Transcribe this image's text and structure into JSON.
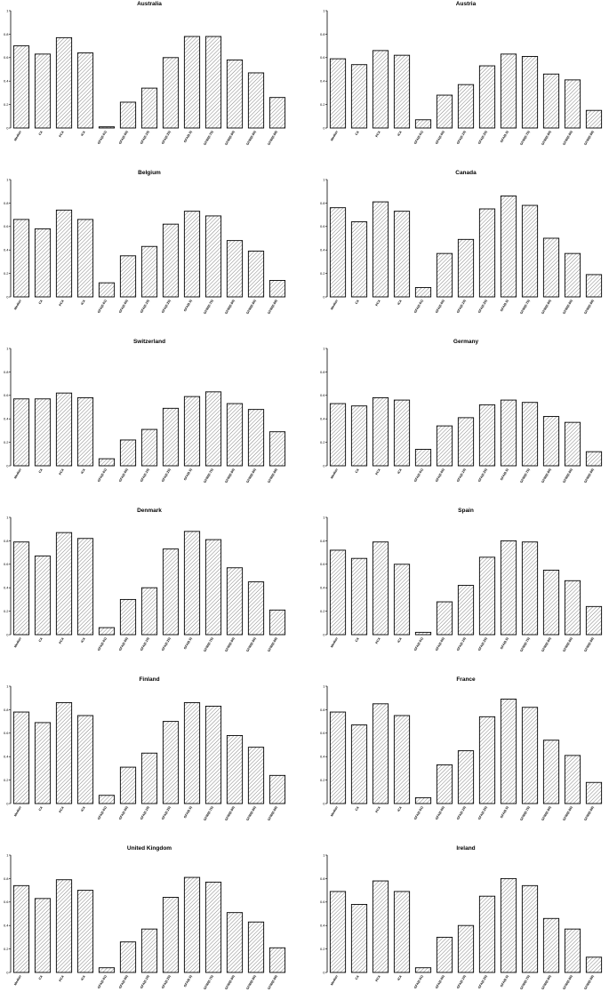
{
  "chart_data": [
    {
      "type": "bar",
      "title": "Australia",
      "categories": [
        "Median",
        "CA",
        "PCA",
        "ICA",
        "GFA(0.01)",
        "GFA(0.05)",
        "GFA(0.10)",
        "GFA(0.25)",
        "GFA(0.5)",
        "GFRI(0.75)",
        "GFRI(0.90)",
        "GFRI(0.95)",
        "GFRI(0.99)"
      ],
      "values": [
        0.7,
        0.63,
        0.77,
        0.64,
        0.01,
        0.22,
        0.34,
        0.6,
        0.78,
        0.78,
        0.58,
        0.47,
        0.26
      ],
      "ylim": [
        0,
        1
      ],
      "yticks": [
        "0",
        "0.2",
        "0.4",
        "0.6",
        "0.8",
        "1"
      ]
    },
    {
      "type": "bar",
      "title": "Austria",
      "categories": [
        "Median",
        "CA",
        "PCA",
        "ICA",
        "GFA(0.01)",
        "GFA(0.05)",
        "GFA(0.10)",
        "GFA(0.25)",
        "GFA(0.5)",
        "GFRI(0.75)",
        "GFRI(0.90)",
        "GFRI(0.95)",
        "GFRI(0.99)"
      ],
      "values": [
        0.59,
        0.54,
        0.66,
        0.62,
        0.07,
        0.28,
        0.37,
        0.53,
        0.63,
        0.61,
        0.46,
        0.41,
        0.15
      ],
      "ylim": [
        0,
        1
      ],
      "yticks": [
        "0",
        "0.2",
        "0.4",
        "0.6",
        "0.8",
        "1"
      ]
    },
    {
      "type": "bar",
      "title": "Belgium",
      "categories": [
        "Median",
        "CA",
        "PCA",
        "ICA",
        "GFA(0.01)",
        "GFA(0.05)",
        "GFA(0.10)",
        "GFA(0.25)",
        "GFA(0.5)",
        "GFRI(0.75)",
        "GFRI(0.90)",
        "GFRI(0.95)",
        "GFRI(0.99)"
      ],
      "values": [
        0.66,
        0.58,
        0.74,
        0.66,
        0.12,
        0.35,
        0.43,
        0.62,
        0.73,
        0.69,
        0.48,
        0.39,
        0.14
      ],
      "ylim": [
        0,
        1
      ],
      "yticks": [
        "0",
        "0.2",
        "0.4",
        "0.6",
        "0.8",
        "1"
      ]
    },
    {
      "type": "bar",
      "title": "Canada",
      "categories": [
        "Median",
        "CA",
        "PCA",
        "ICA",
        "GFA(0.01)",
        "GFA(0.05)",
        "GFA(0.10)",
        "GFA(0.25)",
        "GFA(0.5)",
        "GFRI(0.75)",
        "GFRI(0.90)",
        "GFRI(0.95)",
        "GFRI(0.99)"
      ],
      "values": [
        0.76,
        0.64,
        0.81,
        0.73,
        0.08,
        0.37,
        0.49,
        0.75,
        0.86,
        0.78,
        0.5,
        0.37,
        0.19
      ],
      "ylim": [
        0,
        1
      ],
      "yticks": [
        "0",
        "0.2",
        "0.4",
        "0.6",
        "0.8",
        "1"
      ]
    },
    {
      "type": "bar",
      "title": "Switzerland",
      "categories": [
        "Median",
        "CA",
        "PCA",
        "ICA",
        "GFA(0.01)",
        "GFA(0.05)",
        "GFA(0.10)",
        "GFA(0.25)",
        "GFA(0.5)",
        "GFRI(0.75)",
        "GFRI(0.90)",
        "GFRI(0.95)",
        "GFRI(0.99)"
      ],
      "values": [
        0.57,
        0.57,
        0.62,
        0.58,
        0.06,
        0.22,
        0.31,
        0.49,
        0.59,
        0.63,
        0.53,
        0.48,
        0.29
      ],
      "ylim": [
        0,
        1
      ],
      "yticks": [
        "0",
        "0.2",
        "0.4",
        "0.6",
        "0.8",
        "1"
      ]
    },
    {
      "type": "bar",
      "title": "Germany",
      "categories": [
        "Median",
        "CA",
        "PCA",
        "ICA",
        "GFA(0.01)",
        "GFA(0.05)",
        "GFA(0.10)",
        "GFA(0.25)",
        "GFA(0.5)",
        "GFRI(0.75)",
        "GFRI(0.90)",
        "GFRI(0.95)",
        "GFRI(0.99)"
      ],
      "values": [
        0.53,
        0.51,
        0.58,
        0.56,
        0.14,
        0.34,
        0.41,
        0.52,
        0.56,
        0.54,
        0.42,
        0.37,
        0.12
      ],
      "ylim": [
        0,
        1
      ],
      "yticks": [
        "0",
        "0.2",
        "0.4",
        "0.6",
        "0.8",
        "1"
      ]
    },
    {
      "type": "bar",
      "title": "Denmark",
      "categories": [
        "Median",
        "CA",
        "PCA",
        "ICA",
        "GFA(0.01)",
        "GFA(0.05)",
        "GFA(0.10)",
        "GFA(0.25)",
        "GFA(0.5)",
        "GFRI(0.75)",
        "GFRI(0.90)",
        "GFRI(0.95)",
        "GFRI(0.99)"
      ],
      "values": [
        0.79,
        0.67,
        0.87,
        0.82,
        0.06,
        0.3,
        0.4,
        0.73,
        0.88,
        0.81,
        0.57,
        0.45,
        0.21
      ],
      "ylim": [
        0,
        1
      ],
      "yticks": [
        "0",
        "0.2",
        "0.4",
        "0.6",
        "0.8",
        "1"
      ]
    },
    {
      "type": "bar",
      "title": "Spain",
      "categories": [
        "Median",
        "CA",
        "PCA",
        "ICA",
        "GFA(0.01)",
        "GFA(0.05)",
        "GFA(0.10)",
        "GFA(0.25)",
        "GFA(0.5)",
        "GFRI(0.75)",
        "GFRI(0.90)",
        "GFRI(0.95)",
        "GFRI(0.99)"
      ],
      "values": [
        0.72,
        0.65,
        0.79,
        0.6,
        0.02,
        0.28,
        0.42,
        0.66,
        0.8,
        0.79,
        0.55,
        0.46,
        0.24
      ],
      "ylim": [
        0,
        1
      ],
      "yticks": [
        "0",
        "0.2",
        "0.4",
        "0.6",
        "0.8",
        "1"
      ]
    },
    {
      "type": "bar",
      "title": "Finland",
      "categories": [
        "Median",
        "CA",
        "PCA",
        "ICA",
        "GFA(0.01)",
        "GFA(0.05)",
        "GFA(0.10)",
        "GFA(0.25)",
        "GFA(0.5)",
        "GFRI(0.75)",
        "GFRI(0.90)",
        "GFRI(0.95)",
        "GFRI(0.99)"
      ],
      "values": [
        0.78,
        0.69,
        0.86,
        0.75,
        0.07,
        0.31,
        0.43,
        0.7,
        0.86,
        0.83,
        0.58,
        0.48,
        0.24
      ],
      "ylim": [
        0,
        1
      ],
      "yticks": [
        "0",
        "0.2",
        "0.4",
        "0.6",
        "0.8",
        "1"
      ]
    },
    {
      "type": "bar",
      "title": "France",
      "categories": [
        "Median",
        "CA",
        "PCA",
        "ICA",
        "GFA(0.01)",
        "GFA(0.05)",
        "GFA(0.10)",
        "GFA(0.25)",
        "GFA(0.5)",
        "GFRI(0.75)",
        "GFRI(0.90)",
        "GFRI(0.95)",
        "GFRI(0.99)"
      ],
      "values": [
        0.78,
        0.67,
        0.85,
        0.75,
        0.05,
        0.33,
        0.45,
        0.74,
        0.89,
        0.82,
        0.54,
        0.41,
        0.18
      ],
      "ylim": [
        0,
        1
      ],
      "yticks": [
        "0",
        "0.2",
        "0.4",
        "0.6",
        "0.8",
        "1"
      ]
    },
    {
      "type": "bar",
      "title": "United Kingdom",
      "categories": [
        "Median",
        "CA",
        "PCA",
        "ICA",
        "GFA(0.01)",
        "GFA(0.05)",
        "GFA(0.10)",
        "GFA(0.25)",
        "GFA(0.5)",
        "GFRI(0.75)",
        "GFRI(0.90)",
        "GFRI(0.95)",
        "GFRI(0.99)"
      ],
      "values": [
        0.74,
        0.63,
        0.79,
        0.7,
        0.04,
        0.26,
        0.37,
        0.64,
        0.81,
        0.77,
        0.51,
        0.43,
        0.21
      ],
      "ylim": [
        0,
        1
      ],
      "yticks": [
        "0",
        "0.2",
        "0.4",
        "0.6",
        "0.8",
        "1"
      ]
    },
    {
      "type": "bar",
      "title": "Ireland",
      "categories": [
        "Median",
        "CA",
        "PCA",
        "ICA",
        "GFA(0.01)",
        "GFA(0.05)",
        "GFA(0.10)",
        "GFA(0.25)",
        "GFA(0.5)",
        "GFRI(0.75)",
        "GFRI(0.90)",
        "GFRI(0.95)",
        "GFRI(0.99)"
      ],
      "values": [
        0.69,
        0.58,
        0.78,
        0.69,
        0.04,
        0.3,
        0.4,
        0.65,
        0.8,
        0.74,
        0.46,
        0.37,
        0.13
      ],
      "ylim": [
        0,
        1
      ],
      "yticks": [
        "0",
        "0.2",
        "0.4",
        "0.6",
        "0.8",
        "1"
      ]
    }
  ]
}
